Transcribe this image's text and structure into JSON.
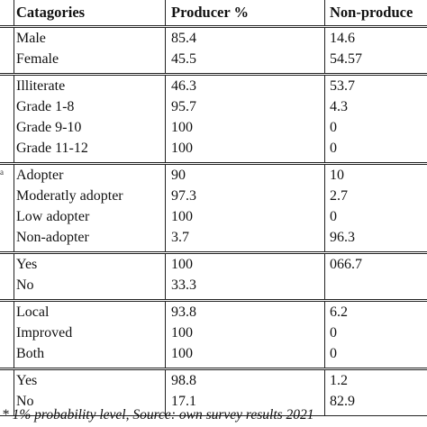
{
  "table": {
    "headers": [
      "Catagories",
      "Producer %",
      "Non-produce"
    ],
    "groups": [
      {
        "rows": [
          {
            "category": "Male",
            "producer": "85.4",
            "nonproducer": "14.6"
          },
          {
            "category": "Female",
            "producer": "45.5",
            "nonproducer": "54.57"
          }
        ]
      },
      {
        "rows": [
          {
            "category": "Illiterate",
            "producer": "46.3",
            "nonproducer": "53.7"
          },
          {
            "category": "Grade 1-8",
            "producer": "95.7",
            "nonproducer": "4.3"
          },
          {
            "category": "Grade 9-10",
            "producer": "100",
            "nonproducer": " 0"
          },
          {
            "category": "Grade 11-12",
            "producer": "100",
            "nonproducer": "0"
          }
        ]
      },
      {
        "rows": [
          {
            "category": "Adopter",
            "producer": "90",
            "nonproducer": "10"
          },
          {
            "category": "Moderatly adopter",
            "producer": "97.3",
            "nonproducer": "2.7"
          },
          {
            "category": "Low adopter",
            "producer": "100",
            "nonproducer": "0"
          },
          {
            "category": "Non-adopter",
            "producer": "3.7",
            "nonproducer": "96.3"
          }
        ]
      },
      {
        "rows": [
          {
            "category": "Yes",
            "producer": "100",
            "nonproducer": "066.7"
          },
          {
            "category": "No",
            "producer": "33.3",
            "nonproducer": ""
          }
        ]
      },
      {
        "rows": [
          {
            "category": "Local",
            "producer": "93.8",
            "nonproducer": "6.2"
          },
          {
            "category": "Improved",
            "producer": "100",
            "nonproducer": "0"
          },
          {
            "category": "Both",
            "producer": "100",
            "nonproducer": "0"
          }
        ]
      },
      {
        "rows": [
          {
            "category": "Yes",
            "producer": "98.8",
            "nonproducer": "1.2"
          },
          {
            "category": "No",
            "producer": "17.1",
            "nonproducer": "82.9"
          }
        ]
      }
    ]
  },
  "edge_marks": [
    "a"
  ],
  "footnote": "* 1% probability level, Source: own survey results 2021"
}
